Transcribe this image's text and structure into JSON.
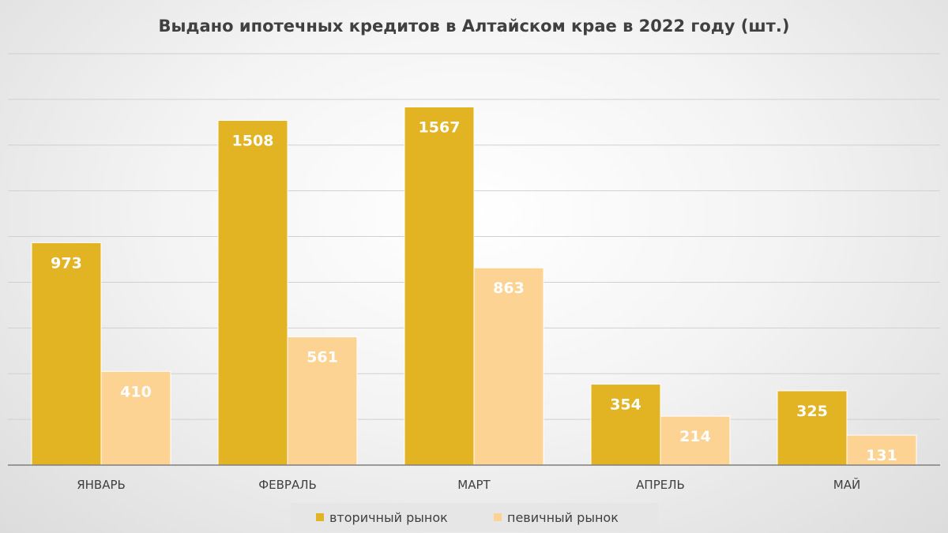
{
  "chart_data": {
    "type": "bar",
    "title": "Выдано ипотечных кредитов в Алтайском крае в 2022 году (шт.)",
    "categories": [
      "ЯНВАРЬ",
      "ФЕВРАЛЬ",
      "МАРТ",
      "АПРЕЛЬ",
      "МАЙ"
    ],
    "series": [
      {
        "name": "вторичный рынок",
        "values": [
          973,
          1508,
          1567,
          354,
          325
        ],
        "color": "#E2B322"
      },
      {
        "name": "певичный рынок",
        "values": [
          410,
          561,
          863,
          214,
          131
        ],
        "color": "#FCD393"
      }
    ],
    "xlabel": "",
    "ylabel": "",
    "ylim": [
      0,
      1800
    ],
    "grid": true,
    "legend_position": "bottom",
    "data_labels": true
  }
}
